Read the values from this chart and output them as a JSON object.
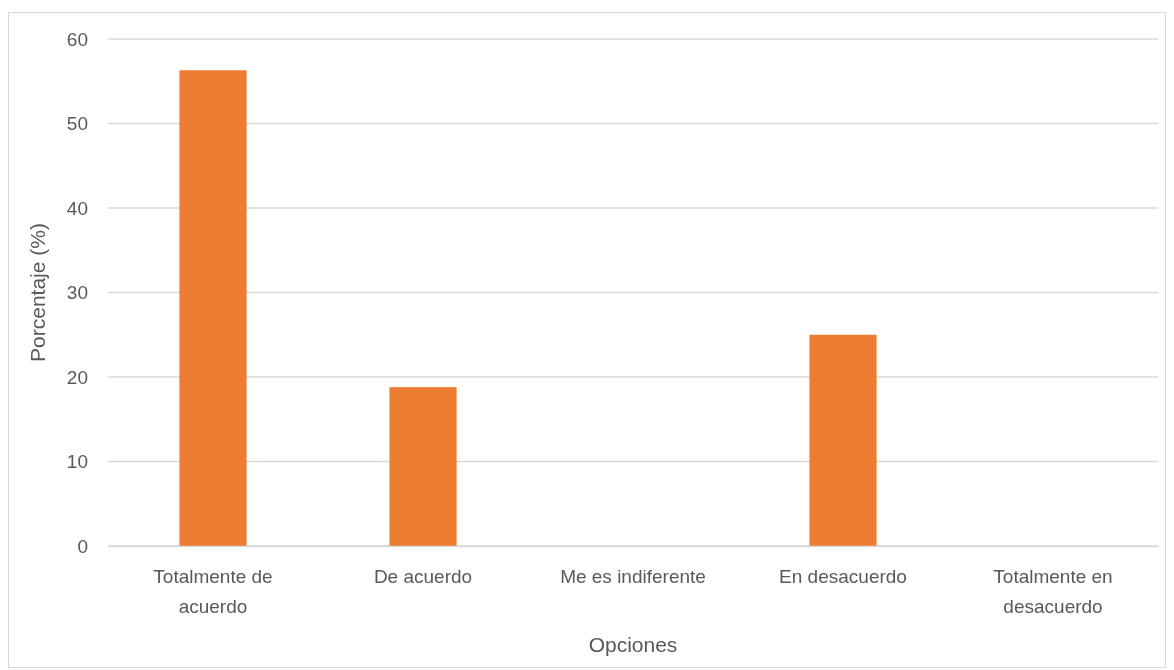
{
  "chart_data": {
    "type": "bar",
    "xlabel": "Opciones",
    "ylabel": "Porcentaje (%)",
    "categories": [
      "Totalmente de acuerdo",
      "De acuerdo",
      "Me es indiferente",
      "En desacuerdo",
      "Totalmente en desacuerdo"
    ],
    "values": [
      56.3,
      18.8,
      0,
      25,
      0
    ],
    "color": "#ed7d31",
    "ylim": [
      0,
      60
    ],
    "yticks": [
      0,
      10,
      20,
      30,
      40,
      50,
      60
    ],
    "grid": "y"
  }
}
